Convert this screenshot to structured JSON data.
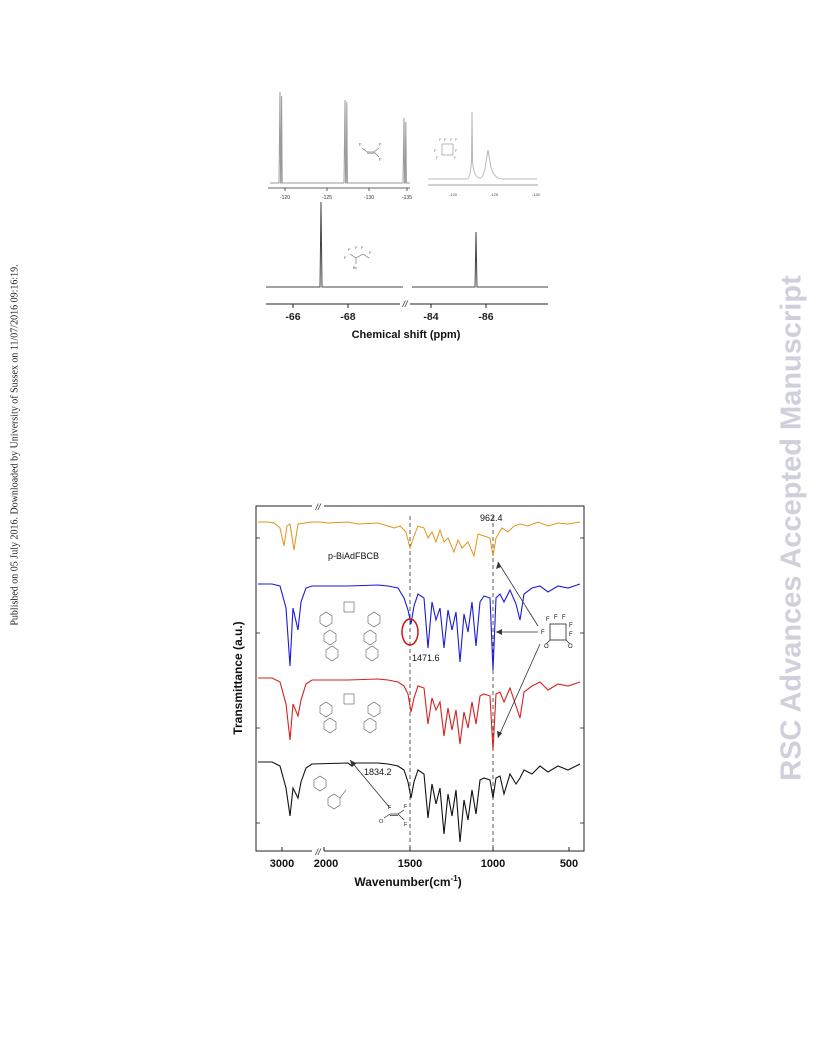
{
  "header": {
    "published_note": "Published on 05 July 2016. Downloaded by University of Sussex on 11/07/2016 09:16:19.",
    "watermark": "RSC Advances Accepted Manuscript"
  },
  "colors": {
    "nmr_top": "#9a9a9a",
    "nmr_inset": "#b8b8b8",
    "nmr_bottom": "#444444",
    "ir_orange": "#e0961a",
    "ir_blue": "#1a1adc",
    "ir_red": "#d82020",
    "ir_black": "#111111",
    "ir_highlight_circle": "#d01818"
  },
  "chart_data": [
    {
      "type": "line",
      "title": "",
      "panel": "NMR top-left",
      "x_ticks": [
        "-120",
        "-125",
        "-130",
        "-135"
      ],
      "xlim": [
        -118,
        -135
      ],
      "peaks_ppm": [
        -120.7,
        -120.8,
        -125.6,
        -125.8,
        -134.3,
        -134.6
      ]
    },
    {
      "type": "line",
      "title": "",
      "panel": "NMR top-right inset",
      "x_ticks": [
        "-120",
        "-125",
        "-130"
      ],
      "xlim": [
        -115,
        -131
      ],
      "peaks_ppm": [
        -120.4,
        -122.6
      ]
    },
    {
      "type": "line",
      "title": "",
      "panel": "NMR bottom",
      "xlabel": "Chemical shift (ppm)",
      "x_ticks": [
        "-66",
        "-68",
        "-84",
        "-86"
      ],
      "x_break": "//",
      "peaks_ppm": [
        -67.1,
        -85.0
      ]
    },
    {
      "type": "line",
      "title": "",
      "xlabel_main": "Wavenumber(cm",
      "xlabel_sup": "-1",
      "xlabel_close": ")",
      "ylabel": "Transmittance (a.u.)",
      "x_ticks": [
        "3000",
        "2000",
        "1500",
        "1000",
        "500"
      ],
      "x_break": "//",
      "series": [
        {
          "name": "p-BiAdFBCB",
          "color": "#e0961a"
        },
        {
          "name": "",
          "color": "#1a1adc"
        },
        {
          "name": "",
          "color": "#d82020"
        },
        {
          "name": "",
          "color": "#111111"
        }
      ],
      "annotations": [
        "962.4",
        "1471.6",
        "1834.2"
      ],
      "reference_lines_cm-1": [
        1471.6,
        962.4
      ]
    }
  ]
}
